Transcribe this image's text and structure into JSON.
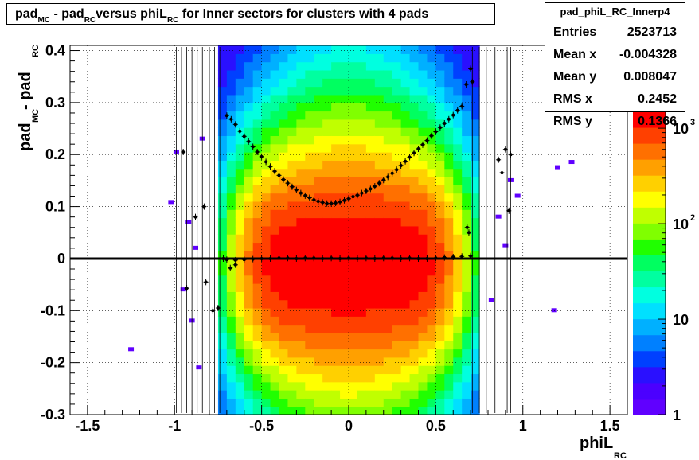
{
  "title": {
    "t1": "pad",
    "s1": "MC",
    "t2": " - pad",
    "s2": "RC",
    "t3": "versus phiL",
    "s3": "RC",
    "t4": " for Inner sectors for clusters with 4 pads"
  },
  "stats": {
    "name": "pad_phiL_RC_Innerp4",
    "rows": [
      {
        "label": "Entries",
        "value": "2523713"
      },
      {
        "label": "Mean x",
        "value": "-0.004328"
      },
      {
        "label": "Mean y",
        "value": "0.008047"
      },
      {
        "label": "RMS x",
        "value": "0.2452"
      },
      {
        "label": "RMS y",
        "value": "0.1366"
      }
    ]
  },
  "chart_data": {
    "type": "heatmap",
    "xlabel": {
      "main": "phiL",
      "sub": "RC"
    },
    "ylabel": {
      "main1": "pad",
      "sub1": "MC",
      "main2": " - pad",
      "sub2": "RC"
    },
    "xlim": [
      -1.6,
      1.6
    ],
    "ylim": [
      -0.3,
      0.41
    ],
    "x_ticks": [
      "-1.5",
      "-1",
      "-0.5",
      "0",
      "0.5",
      "1",
      "1.5"
    ],
    "x_tick_values": [
      -1.5,
      -1,
      -0.5,
      0,
      0.5,
      1,
      1.5
    ],
    "y_ticks": [
      "-0.3",
      "-0.2",
      "-0.1",
      "0",
      "0.1",
      "0.2",
      "0.3",
      "0.4"
    ],
    "y_tick_values": [
      -0.3,
      -0.2,
      -0.1,
      0,
      0.1,
      0.2,
      0.3,
      0.4
    ],
    "z_scale": "log",
    "z_labels": [
      {
        "base": "1",
        "exp": ""
      },
      {
        "base": "10",
        "exp": ""
      },
      {
        "base": "10",
        "exp": "2"
      },
      {
        "base": "10",
        "exp": "3"
      }
    ],
    "z_values": [
      1,
      10,
      100,
      1000
    ],
    "grid": true,
    "profile_upper": {
      "x": [
        -0.7,
        -0.675,
        -0.65,
        -0.625,
        -0.6,
        -0.575,
        -0.55,
        -0.525,
        -0.5,
        -0.475,
        -0.45,
        -0.425,
        -0.4,
        -0.375,
        -0.35,
        -0.325,
        -0.3,
        -0.275,
        -0.25,
        -0.225,
        -0.2,
        -0.175,
        -0.15,
        -0.125,
        -0.1,
        -0.075,
        -0.05,
        -0.025,
        0,
        0.025,
        0.05,
        0.075,
        0.1,
        0.125,
        0.15,
        0.175,
        0.2,
        0.225,
        0.25,
        0.275,
        0.3,
        0.325,
        0.35,
        0.375,
        0.4,
        0.425,
        0.45,
        0.475,
        0.5,
        0.525,
        0.55,
        0.575,
        0.6,
        0.625,
        0.65,
        0.675,
        0.7
      ],
      "y": [
        0.275,
        0.268,
        0.258,
        0.245,
        0.235,
        0.225,
        0.215,
        0.205,
        0.196,
        0.186,
        0.177,
        0.168,
        0.16,
        0.152,
        0.145,
        0.138,
        0.132,
        0.126,
        0.121,
        0.117,
        0.113,
        0.11,
        0.108,
        0.106,
        0.106,
        0.107,
        0.109,
        0.112,
        0.115,
        0.119,
        0.122,
        0.126,
        0.13,
        0.134,
        0.139,
        0.145,
        0.151,
        0.157,
        0.164,
        0.171,
        0.179,
        0.187,
        0.195,
        0.203,
        0.211,
        0.219,
        0.227,
        0.236,
        0.244,
        0.252,
        0.26,
        0.268,
        0.276,
        0.285,
        0.293,
        0.335,
        0.365
      ]
    },
    "profile_lower": {
      "x": [
        -0.7,
        -0.65,
        -0.6,
        -0.55,
        -0.5,
        -0.45,
        -0.4,
        -0.35,
        -0.3,
        -0.25,
        -0.2,
        -0.15,
        -0.1,
        -0.05,
        0,
        0.05,
        0.1,
        0.15,
        0.2,
        0.25,
        0.3,
        0.35,
        0.4,
        0.45,
        0.5,
        0.55,
        0.6,
        0.65,
        0.7
      ],
      "y": [
        -0.002,
        -0.003,
        -0.002,
        -0.001,
        0,
        0,
        0.001,
        0.001,
        0,
        0.001,
        0.001,
        0,
        0.001,
        0,
        0.001,
        0,
        0.001,
        0,
        0.001,
        0.001,
        0,
        0.001,
        0,
        0,
        0.001,
        0.002,
        0.003,
        0.004,
        0.005
      ]
    },
    "outlier_points": {
      "x": [
        -0.95,
        -0.93,
        -0.88,
        -0.83,
        -0.82,
        -0.78,
        -0.75,
        -0.72,
        -0.68,
        -0.65,
        0.68,
        0.69,
        0.71,
        0.86,
        0.88,
        0.9,
        0.92,
        0.93
      ],
      "y": [
        0.205,
        -0.057,
        0.08,
        0.1,
        -0.045,
        -0.1,
        -0.095,
        0,
        -0.018,
        -0.012,
        0.06,
        0.05,
        0.34,
        0.19,
        0.165,
        0.21,
        0.092,
        0.2
      ]
    }
  }
}
